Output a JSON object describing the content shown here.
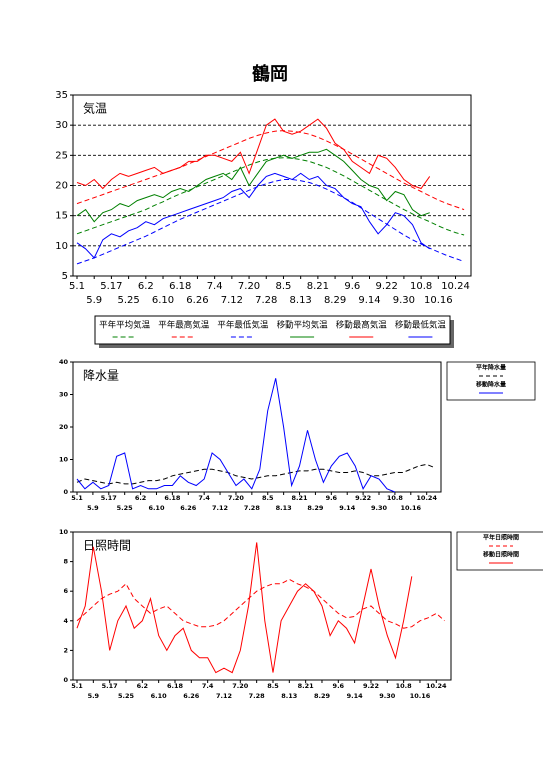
{
  "title": "鶴岡",
  "chart_data": [
    {
      "type": "line",
      "title": "気温",
      "legend": "below",
      "grid": true,
      "categories": [
        "5.1",
        null,
        "5.9",
        null,
        "5.17",
        null,
        "5.25",
        null,
        "6.2",
        null,
        "6.10",
        null,
        "6.18",
        null,
        "6.26",
        null,
        "7.4",
        null,
        "7.12",
        null,
        "7.20",
        null,
        "7.28",
        null,
        "8.5",
        null,
        "8.13",
        null,
        "8.21",
        null,
        "8.29",
        null,
        "9.6",
        null,
        "9.14",
        null,
        "9.22",
        null,
        "9.30",
        null,
        "10.8",
        null,
        "10.16",
        null,
        "10.24",
        null
      ],
      "ylim": [
        5,
        35
      ],
      "yticks": [
        5,
        10,
        15,
        20,
        25,
        30,
        35
      ],
      "series": [
        {
          "name": "平年平均気温",
          "color": "#008000",
          "style": "dashed",
          "values": [
            12,
            12.5,
            13,
            13.5,
            14,
            14.5,
            15,
            15.5,
            16,
            16.7,
            17.3,
            18,
            18.6,
            19.2,
            19.8,
            20.4,
            21,
            21.6,
            22.2,
            22.8,
            23.4,
            23.9,
            24.3,
            24.5,
            24.6,
            24.5,
            24.3,
            24,
            23.5,
            23,
            22.3,
            21.6,
            20.8,
            20,
            19.2,
            18.4,
            17.6,
            16.8,
            16,
            15.3,
            14.6,
            14,
            13.3,
            12.7,
            12.2,
            11.8
          ]
        },
        {
          "name": "平年最高気温",
          "color": "#ff0000",
          "style": "dashed",
          "values": [
            17,
            17.5,
            18,
            18.5,
            19,
            19.5,
            20,
            20.5,
            21,
            21.5,
            22,
            22.5,
            23,
            23.6,
            24.2,
            24.8,
            25.4,
            26,
            26.6,
            27.2,
            27.8,
            28.3,
            28.7,
            29,
            29.1,
            29,
            28.8,
            28.5,
            28,
            27.4,
            26.7,
            26,
            25.2,
            24.4,
            23.6,
            22.8,
            22,
            21.2,
            20.4,
            19.7,
            19,
            18.3,
            17.6,
            17,
            16.5,
            16
          ]
        },
        {
          "name": "平年最低気温",
          "color": "#0000ff",
          "style": "dashed",
          "values": [
            7,
            7.5,
            8,
            8.6,
            9.2,
            9.8,
            10.4,
            11,
            11.6,
            12.3,
            13,
            13.7,
            14.4,
            15,
            15.6,
            16.2,
            16.8,
            17.4,
            18,
            18.6,
            19.2,
            19.8,
            20.3,
            20.7,
            21,
            21,
            20.8,
            20.5,
            20,
            19.4,
            18.7,
            18,
            17.2,
            16.3,
            15.4,
            14.5,
            13.6,
            12.7,
            11.8,
            11,
            10.3,
            9.6,
            9,
            8.4,
            7.9,
            7.4
          ]
        },
        {
          "name": "移動平均気温",
          "color": "#008000",
          "style": "solid",
          "values": [
            15,
            16,
            14,
            15.5,
            16,
            17,
            16.5,
            17.5,
            18,
            18.5,
            18,
            19,
            19.5,
            19,
            20,
            21,
            21.5,
            22,
            21,
            23,
            20,
            22,
            24,
            24.5,
            25,
            24.5,
            25,
            25.5,
            25.5,
            26,
            25,
            24,
            22.5,
            21,
            20,
            19.5,
            17.5,
            19,
            18.5,
            16,
            15,
            15.5,
            null,
            null,
            null,
            null
          ]
        },
        {
          "name": "移動最高気温",
          "color": "#ff0000",
          "style": "solid",
          "values": [
            20.5,
            20,
            21,
            19.5,
            21,
            22,
            21.5,
            22,
            22.5,
            23,
            22,
            22.5,
            23,
            24,
            24,
            25,
            25,
            24.5,
            24,
            25.5,
            22,
            26,
            30,
            31,
            29,
            28.5,
            29,
            30,
            31,
            29.5,
            27,
            26,
            24,
            23,
            22,
            25,
            24.5,
            23,
            21,
            20,
            19.5,
            21.5,
            null,
            null,
            null,
            null
          ]
        },
        {
          "name": "移動最低気温",
          "color": "#0000ff",
          "style": "solid",
          "values": [
            10.5,
            9.5,
            8,
            11,
            12,
            11.5,
            12.5,
            13,
            14,
            13.5,
            14.5,
            15,
            15.5,
            16,
            16.5,
            17,
            17.5,
            18,
            19,
            19.5,
            18,
            20,
            21.5,
            22,
            21.5,
            21,
            22,
            21,
            21.5,
            20,
            19.5,
            18,
            17,
            16.5,
            14,
            12,
            13.5,
            15.5,
            15,
            13.5,
            10.5,
            9.5,
            null,
            null,
            null,
            null
          ]
        }
      ]
    },
    {
      "type": "line",
      "title": "降水量",
      "legend": "right",
      "grid": false,
      "categories": [
        "5.1",
        null,
        "5.9",
        null,
        "5.17",
        null,
        "5.25",
        null,
        "6.2",
        null,
        "6.10",
        null,
        "6.18",
        null,
        "6.26",
        null,
        "7.4",
        null,
        "7.12",
        null,
        "7.20",
        null,
        "7.28",
        null,
        "8.5",
        null,
        "8.13",
        null,
        "8.21",
        null,
        "8.29",
        null,
        "9.6",
        null,
        "9.14",
        null,
        "9.22",
        null,
        "9.30",
        null,
        "10.8",
        null,
        "10.16",
        null,
        "10.24",
        null
      ],
      "ylim": [
        0,
        40
      ],
      "yticks": [
        0,
        10,
        20,
        30,
        40
      ],
      "series": [
        {
          "name": "平年降水量",
          "color": "#000000",
          "style": "dashed",
          "values": [
            3,
            4,
            3.5,
            3,
            2.5,
            3,
            2.5,
            2.5,
            3,
            3.5,
            3.5,
            4,
            5,
            5.5,
            6,
            6.5,
            7,
            7,
            6.5,
            6,
            5,
            4.5,
            4,
            4.5,
            5,
            5,
            5.5,
            6,
            6.5,
            6.5,
            7,
            7,
            6.5,
            6,
            6,
            6.5,
            6,
            5,
            5,
            5.5,
            6,
            6,
            7,
            8,
            8.5,
            7.5
          ]
        },
        {
          "name": "移動降水量",
          "color": "#0000ff",
          "style": "solid",
          "values": [
            4,
            1,
            3,
            1,
            2,
            11,
            12,
            1,
            2,
            1,
            1,
            2,
            2,
            5,
            3,
            2,
            4,
            12,
            10,
            6,
            2,
            4,
            1,
            7,
            25,
            35,
            20,
            2,
            8,
            19,
            10,
            3,
            8,
            11,
            12,
            8,
            1,
            5,
            4,
            1,
            0,
            null,
            null,
            null,
            null,
            null
          ]
        }
      ]
    },
    {
      "type": "line",
      "title": "日照時間",
      "legend": "right",
      "grid": false,
      "categories": [
        "5.1",
        null,
        "5.9",
        null,
        "5.17",
        null,
        "5.25",
        null,
        "6.2",
        null,
        "6.10",
        null,
        "6.18",
        null,
        "6.26",
        null,
        "7.4",
        null,
        "7.12",
        null,
        "7.20",
        null,
        "7.28",
        null,
        "8.5",
        null,
        "8.13",
        null,
        "8.21",
        null,
        "8.29",
        null,
        "9.6",
        null,
        "9.14",
        null,
        "9.22",
        null,
        "9.30",
        null,
        "10.8",
        null,
        "10.16",
        null,
        "10.24",
        null
      ],
      "ylim": [
        0,
        10
      ],
      "yticks": [
        0,
        2,
        4,
        6,
        8,
        10
      ],
      "series": [
        {
          "name": "平年日照時間",
          "color": "#ff0000",
          "style": "dashed",
          "values": [
            4,
            4.5,
            5,
            5.5,
            5.8,
            6,
            6.5,
            5.5,
            5,
            4.5,
            4.8,
            5,
            4.5,
            4,
            3.8,
            3.6,
            3.6,
            3.7,
            4,
            4.5,
            5,
            5.5,
            6,
            6.3,
            6.5,
            6.5,
            6.8,
            6.5,
            6.3,
            6,
            5.5,
            5,
            4.5,
            4.2,
            4.3,
            4.8,
            5,
            4.5,
            4,
            3.8,
            3.5,
            3.6,
            4,
            4.2,
            4.5,
            4
          ]
        },
        {
          "name": "移動日照時間",
          "color": "#ff0000",
          "style": "solid",
          "values": [
            3.5,
            5,
            9,
            6,
            2,
            4,
            5,
            3.5,
            4,
            5.5,
            3,
            2,
            3,
            3.5,
            2,
            1.5,
            1.5,
            0.5,
            0.8,
            0.5,
            2,
            5,
            9.3,
            4,
            0.5,
            4,
            5,
            6,
            6.5,
            6,
            5,
            3,
            4,
            3.5,
            2.5,
            5,
            7.5,
            5,
            3,
            1.5,
            4,
            7,
            null,
            null,
            null,
            null
          ]
        }
      ]
    }
  ]
}
